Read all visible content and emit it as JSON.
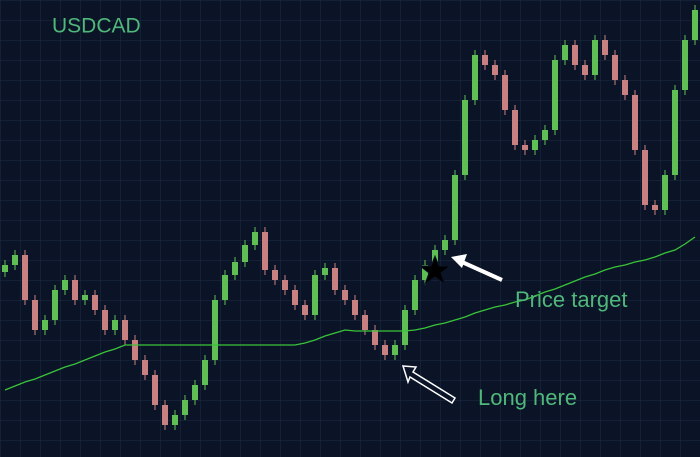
{
  "chart_data": {
    "type": "candlestick",
    "title": "USDCAD",
    "annotations": [
      "Price target",
      "Long here"
    ],
    "ylim": [
      0,
      457
    ],
    "up_color": "#5fbf55",
    "down_color": "#c98080",
    "ma_color": "#39c33a",
    "open": [
      185,
      192,
      202,
      157,
      127,
      137,
      167,
      177,
      157,
      162,
      147,
      127,
      137,
      117,
      97,
      82,
      52,
      32,
      42,
      57,
      72,
      97,
      157,
      182,
      195,
      212,
      225,
      187,
      177,
      167,
      152,
      142,
      182,
      189,
      167,
      157,
      142,
      127,
      112,
      102,
      112,
      147,
      177,
      192,
      207,
      217,
      282,
      357,
      402,
      392,
      382,
      347,
      312,
      307,
      317,
      327,
      397,
      412,
      392,
      382,
      417,
      402,
      377,
      362,
      307,
      252,
      247,
      282,
      367,
      417
    ],
    "high": [
      197,
      207,
      207,
      162,
      142,
      172,
      182,
      182,
      167,
      167,
      152,
      142,
      142,
      122,
      102,
      87,
      57,
      47,
      62,
      77,
      102,
      162,
      187,
      200,
      217,
      230,
      230,
      192,
      182,
      172,
      157,
      187,
      194,
      194,
      172,
      162,
      147,
      132,
      117,
      117,
      152,
      182,
      197,
      212,
      222,
      287,
      362,
      407,
      407,
      397,
      387,
      352,
      317,
      322,
      332,
      402,
      417,
      417,
      397,
      422,
      422,
      407,
      382,
      367,
      312,
      257,
      287,
      372,
      422,
      452
    ],
    "low": [
      180,
      187,
      152,
      122,
      122,
      132,
      162,
      152,
      152,
      142,
      122,
      122,
      112,
      92,
      77,
      47,
      27,
      27,
      37,
      52,
      67,
      92,
      152,
      177,
      190,
      207,
      182,
      172,
      162,
      147,
      137,
      137,
      177,
      162,
      152,
      137,
      122,
      107,
      97,
      97,
      107,
      142,
      172,
      187,
      202,
      212,
      277,
      352,
      387,
      377,
      342,
      307,
      302,
      302,
      312,
      322,
      392,
      387,
      377,
      377,
      397,
      372,
      357,
      302,
      247,
      242,
      242,
      277,
      362,
      412
    ],
    "close": [
      192,
      202,
      157,
      127,
      137,
      167,
      177,
      157,
      162,
      147,
      127,
      137,
      117,
      97,
      82,
      52,
      32,
      42,
      57,
      72,
      97,
      157,
      182,
      195,
      212,
      225,
      187,
      177,
      167,
      152,
      142,
      182,
      189,
      167,
      157,
      142,
      127,
      112,
      102,
      112,
      147,
      177,
      192,
      207,
      217,
      282,
      357,
      402,
      392,
      382,
      347,
      312,
      307,
      317,
      327,
      397,
      412,
      392,
      382,
      417,
      402,
      377,
      362,
      307,
      252,
      247,
      282,
      367,
      417,
      447
    ],
    "moving_average": [
      67,
      71,
      75,
      78,
      82,
      86,
      90,
      93,
      97,
      101,
      105,
      108,
      112,
      112,
      112,
      112,
      112,
      112,
      112,
      112,
      112,
      112,
      112,
      112,
      112,
      112,
      112,
      112,
      112,
      112,
      114,
      117,
      121,
      124,
      127,
      126,
      126,
      126,
      126,
      126,
      126,
      127,
      129,
      132,
      134,
      137,
      140,
      144,
      147,
      150,
      152,
      155,
      157,
      161,
      165,
      168,
      172,
      176,
      180,
      183,
      187,
      190,
      192,
      195,
      197,
      200,
      204,
      207,
      213,
      220
    ]
  }
}
